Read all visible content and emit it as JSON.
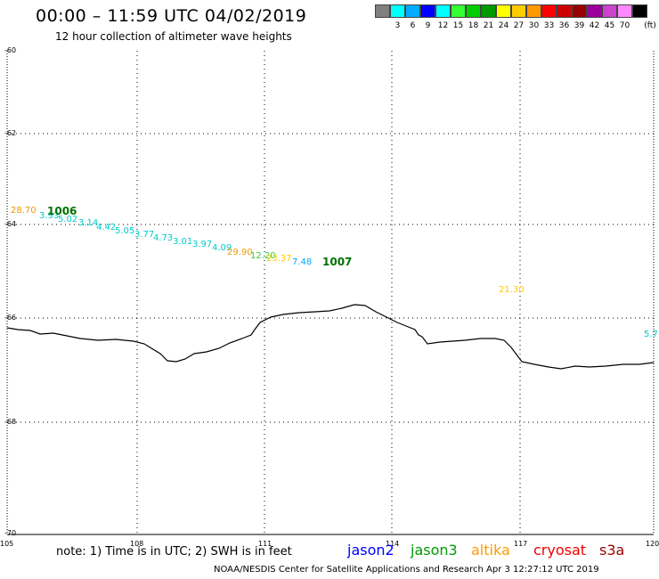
{
  "header": {
    "title": "00:00 – 11:59 UTC 04/02/2019",
    "subtitle": "12 hour collection of altimeter wave heights"
  },
  "legend": {
    "colors": [
      "#808080",
      "#00ffff",
      "#00aaff",
      "#0000ff",
      "#00ffff",
      "#33ff33",
      "#00cc00",
      "#009900",
      "#ffff00",
      "#ffcc00",
      "#ff9900",
      "#ff0000",
      "#cc0000",
      "#990000",
      "#990099",
      "#cc44cc",
      "#ff88ff",
      "#000000"
    ],
    "ticks": [
      "3",
      "6",
      "9",
      "12",
      "15",
      "18",
      "21",
      "24",
      "27",
      "30",
      "33",
      "36",
      "39",
      "42",
      "45",
      "70"
    ],
    "unit": "(ft)"
  },
  "map": {
    "lat_labels": [
      "-60",
      "-62",
      "-64",
      "-66",
      "-68",
      "-70"
    ],
    "lon_labels": [
      "105",
      "108",
      "111",
      "114",
      "117",
      "120"
    ]
  },
  "wave_labels": [
    {
      "text": "28.70",
      "color": "#ee9900"
    },
    {
      "text": "3.93",
      "color": "#00cccc"
    },
    {
      "text": "5.02",
      "color": "#00cccc"
    },
    {
      "text": "3.14",
      "color": "#00cccc"
    },
    {
      "text": "4.42",
      "color": "#00cccc"
    },
    {
      "text": "5.05",
      "color": "#00cccc"
    },
    {
      "text": "3.77",
      "color": "#00cccc"
    },
    {
      "text": "4.73",
      "color": "#00cccc"
    },
    {
      "text": "3.01",
      "color": "#00cccc"
    },
    {
      "text": "3.97",
      "color": "#00cccc"
    },
    {
      "text": "4.09",
      "color": "#00cccc"
    },
    {
      "text": "29.90",
      "color": "#ee9900"
    },
    {
      "text": "12.20",
      "color": "#33cc33"
    },
    {
      "text": "23.37",
      "color": "#ffcc00"
    },
    {
      "text": "7.48",
      "color": "#00aaff"
    },
    {
      "text": "21.30",
      "color": "#ffcc00"
    },
    {
      "text": "5.7",
      "color": "#00cccc"
    }
  ],
  "pressure_labels": [
    "1006",
    "1007"
  ],
  "footer": {
    "note": "note:  1) Time is in UTC;  2) SWH is in feet",
    "satellites": [
      {
        "name": "jason2",
        "color": "#0000ff"
      },
      {
        "name": "jason3",
        "color": "#009900"
      },
      {
        "name": "altika",
        "color": "#ff9900"
      },
      {
        "name": "cryosat",
        "color": "#ee0000"
      },
      {
        "name": "s3a",
        "color": "#990000"
      }
    ],
    "credit": "NOAA/NESDIS Center for Satellite Applications and Research    Apr  3 12:27:12 UTC 2019"
  }
}
